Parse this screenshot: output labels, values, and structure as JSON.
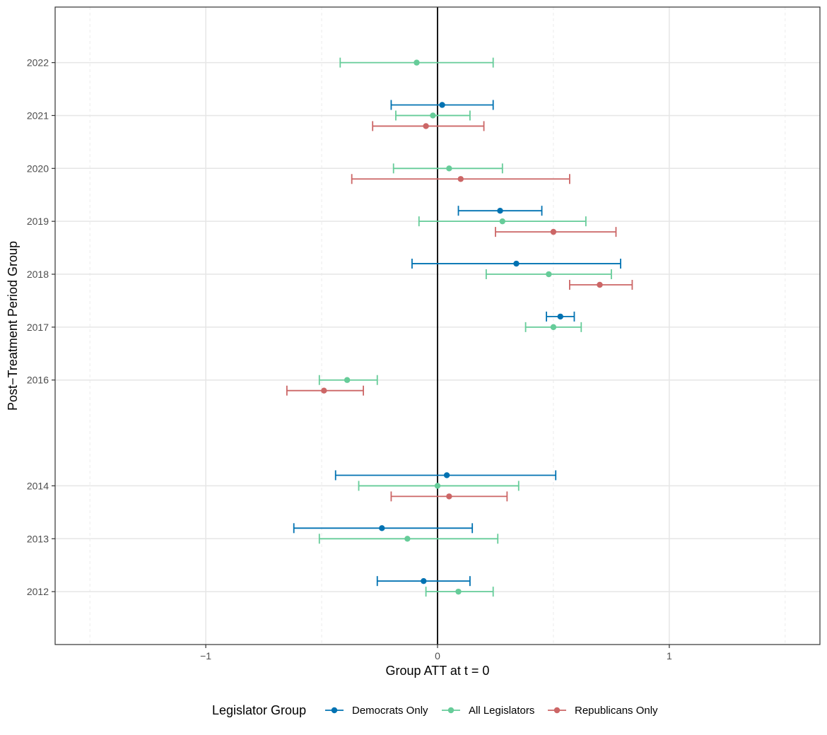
{
  "chart_data": {
    "type": "dot-errorbar",
    "xlabel": "Group ATT at t = 0",
    "ylabel": "Post−Treatment Period Group",
    "xlim": [
      -1.65,
      1.65
    ],
    "ylim": [
      2011.0,
      2023.05
    ],
    "x_ticks": [
      -1,
      0,
      1
    ],
    "x_tick_labels": [
      "−1",
      "0",
      "1"
    ],
    "x_minor_ticks": [
      -1.5,
      -0.5,
      0.5,
      1.5
    ],
    "y_ticks": [
      2012,
      2013,
      2014,
      2016,
      2017,
      2018,
      2019,
      2020,
      2021,
      2022
    ],
    "y_tick_labels": [
      "2012",
      "2013",
      "2014",
      "2016",
      "2017",
      "2018",
      "2019",
      "2020",
      "2021",
      "2022"
    ],
    "vline": 0,
    "legend": {
      "title": "Legislator Group",
      "position": "bottom"
    },
    "series": [
      {
        "name": "Democrats Only",
        "color": "#0072b2",
        "offset": 0.2,
        "points": [
          {
            "year": 2012,
            "estimate": -0.06,
            "lower": -0.26,
            "upper": 0.14
          },
          {
            "year": 2013,
            "estimate": -0.24,
            "lower": -0.62,
            "upper": 0.15
          },
          {
            "year": 2014,
            "estimate": 0.04,
            "lower": -0.44,
            "upper": 0.51
          },
          {
            "year": 2017,
            "estimate": 0.53,
            "lower": 0.47,
            "upper": 0.59
          },
          {
            "year": 2018,
            "estimate": 0.34,
            "lower": -0.11,
            "upper": 0.79
          },
          {
            "year": 2019,
            "estimate": 0.27,
            "lower": 0.09,
            "upper": 0.45
          },
          {
            "year": 2021,
            "estimate": 0.02,
            "lower": -0.2,
            "upper": 0.24
          }
        ]
      },
      {
        "name": "All Legislators",
        "color": "#66cc99",
        "offset": 0,
        "points": [
          {
            "year": 2012,
            "estimate": 0.09,
            "lower": -0.05,
            "upper": 0.24
          },
          {
            "year": 2013,
            "estimate": -0.13,
            "lower": -0.51,
            "upper": 0.26
          },
          {
            "year": 2014,
            "estimate": 0.0,
            "lower": -0.34,
            "upper": 0.35
          },
          {
            "year": 2016,
            "estimate": -0.39,
            "lower": -0.51,
            "upper": -0.26
          },
          {
            "year": 2017,
            "estimate": 0.5,
            "lower": 0.38,
            "upper": 0.62
          },
          {
            "year": 2018,
            "estimate": 0.48,
            "lower": 0.21,
            "upper": 0.75
          },
          {
            "year": 2019,
            "estimate": 0.28,
            "lower": -0.08,
            "upper": 0.64
          },
          {
            "year": 2020,
            "estimate": 0.05,
            "lower": -0.19,
            "upper": 0.28
          },
          {
            "year": 2021,
            "estimate": -0.02,
            "lower": -0.18,
            "upper": 0.14
          },
          {
            "year": 2022,
            "estimate": -0.09,
            "lower": -0.42,
            "upper": 0.24
          }
        ]
      },
      {
        "name": "Republicans Only",
        "color": "#cc6666",
        "offset": -0.2,
        "points": [
          {
            "year": 2014,
            "estimate": 0.05,
            "lower": -0.2,
            "upper": 0.3
          },
          {
            "year": 2016,
            "estimate": -0.49,
            "lower": -0.65,
            "upper": -0.32
          },
          {
            "year": 2018,
            "estimate": 0.7,
            "lower": 0.57,
            "upper": 0.84
          },
          {
            "year": 2019,
            "estimate": 0.5,
            "lower": 0.25,
            "upper": 0.77
          },
          {
            "year": 2020,
            "estimate": 0.1,
            "lower": -0.37,
            "upper": 0.57
          },
          {
            "year": 2021,
            "estimate": -0.05,
            "lower": -0.28,
            "upper": 0.2
          }
        ]
      }
    ]
  }
}
